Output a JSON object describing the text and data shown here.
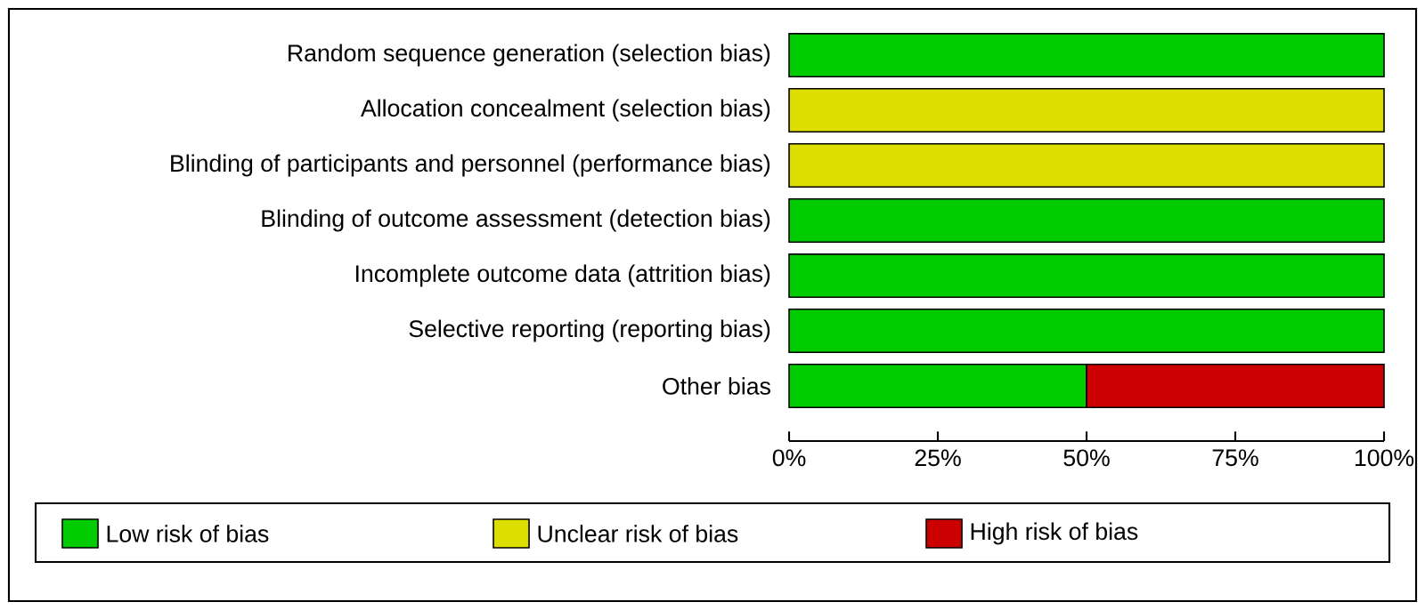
{
  "chart_data": {
    "type": "bar",
    "orientation": "horizontal",
    "stacked": true,
    "categories": [
      "Random sequence generation (selection bias)",
      "Allocation concealment (selection bias)",
      "Blinding of participants and personnel (performance bias)",
      "Blinding of outcome assessment (detection bias)",
      "Incomplete outcome data (attrition bias)",
      "Selective reporting (reporting bias)",
      "Other bias"
    ],
    "series": [
      {
        "name": "Low risk of bias",
        "color": "#00cc00",
        "values": [
          100,
          0,
          0,
          100,
          100,
          100,
          50
        ]
      },
      {
        "name": "Unclear risk of bias",
        "color": "#dddd00",
        "values": [
          0,
          100,
          100,
          0,
          0,
          0,
          0
        ]
      },
      {
        "name": "High risk of bias",
        "color": "#cc0000",
        "values": [
          0,
          0,
          0,
          0,
          0,
          0,
          50
        ]
      }
    ],
    "xlim": [
      0,
      100
    ],
    "xticks": [
      {
        "value": 0,
        "label": "0%"
      },
      {
        "value": 25,
        "label": "25%"
      },
      {
        "value": 50,
        "label": "50%"
      },
      {
        "value": 75,
        "label": "75%"
      },
      {
        "value": 100,
        "label": "100%"
      }
    ],
    "grid": false,
    "legend": "bottom"
  }
}
